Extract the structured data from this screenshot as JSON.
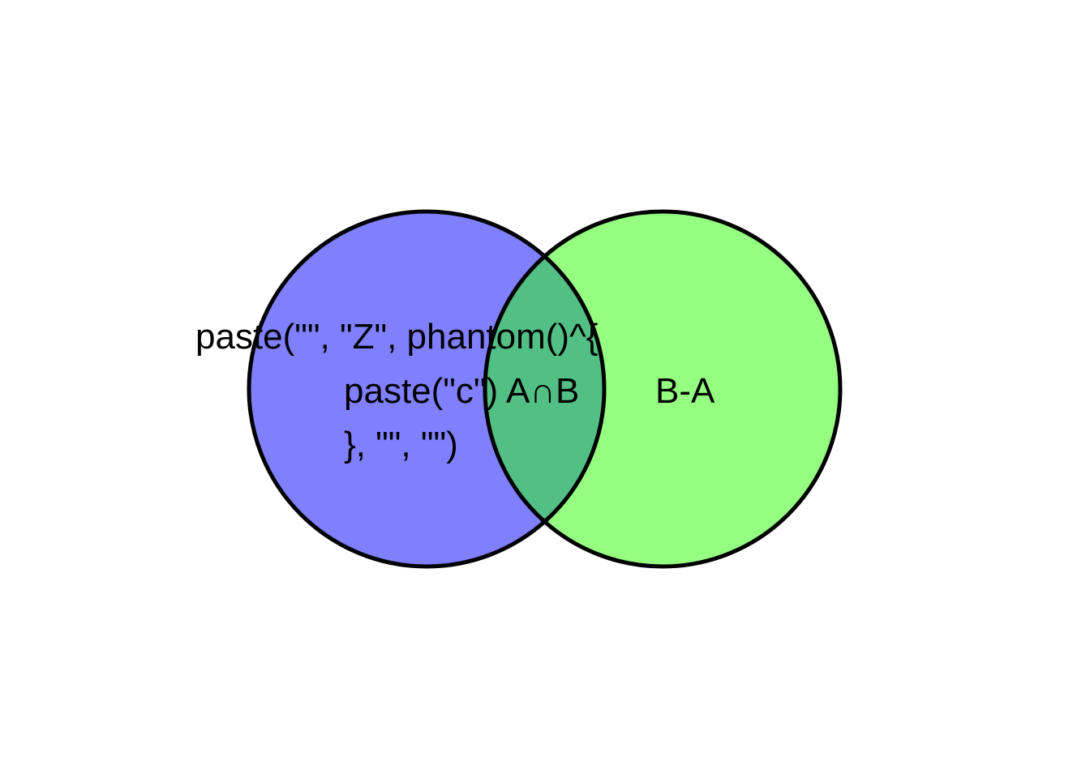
{
  "venn": {
    "sets": [
      {
        "id": "A",
        "color": "#8080ff"
      },
      {
        "id": "B",
        "color": "#94ff80"
      }
    ],
    "intersection_color": "#52c085",
    "outline_color": "#000000",
    "labels": {
      "a_only_line1": "paste(\"\", \"Z\", phantom()^{",
      "a_only_line2": "paste(\"c\")",
      "a_only_line3": "}, \"\", \"\")",
      "intersection": "A∩B",
      "b_only": "B-A"
    }
  }
}
